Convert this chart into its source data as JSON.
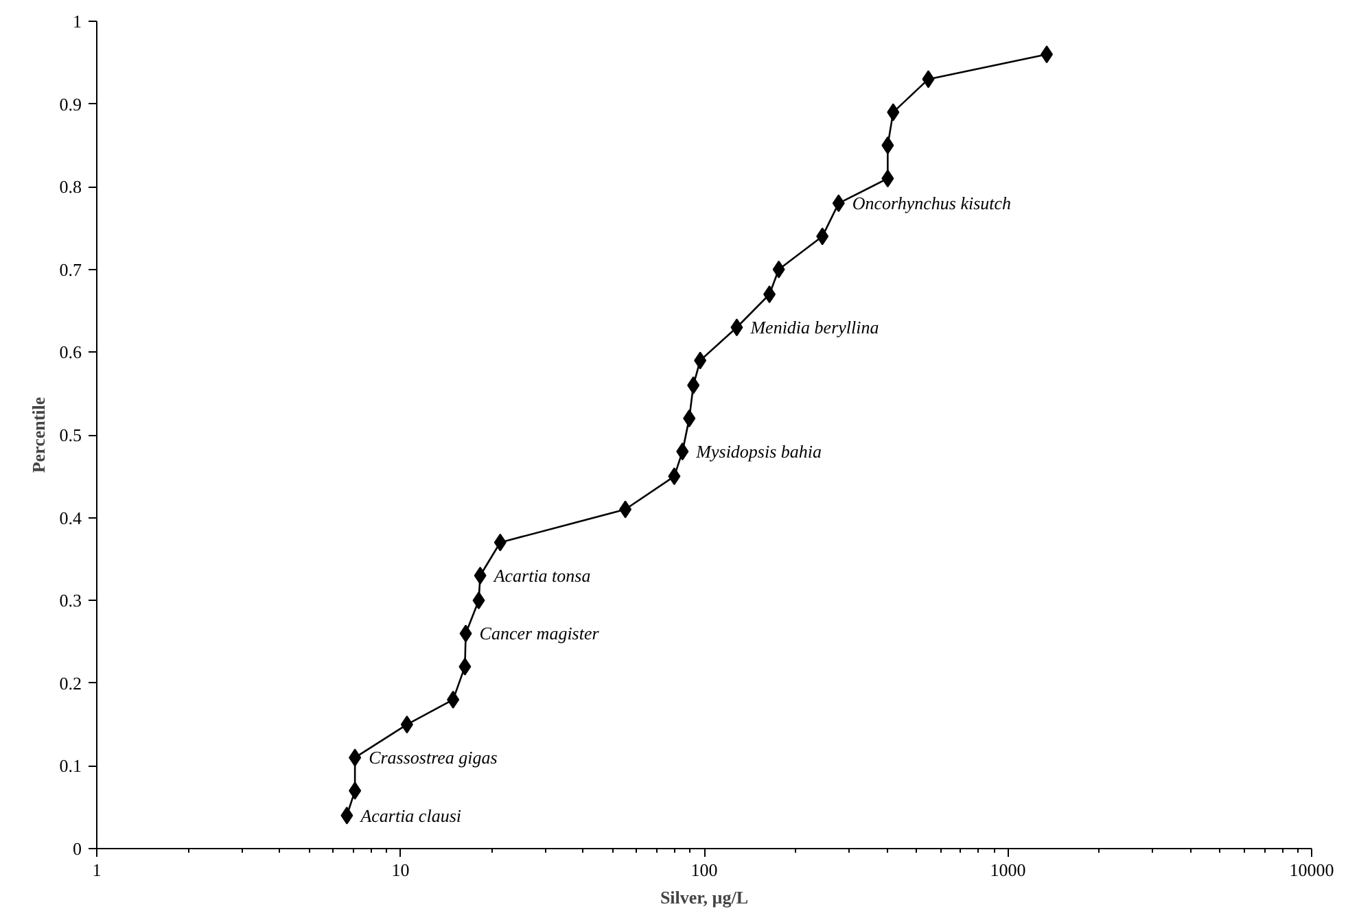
{
  "chart_data": {
    "type": "line",
    "xlabel": "Silver, µg/L",
    "ylabel": "Percentile",
    "x": [
      6.66,
      7.08,
      7.08,
      10.5,
      14.9,
      16.3,
      16.4,
      18.1,
      18.3,
      21.3,
      55,
      79.7,
      84.8,
      89.3,
      92.1,
      97,
      128,
      164,
      176,
      245,
      277,
      402,
      402,
      419,
      547,
      1342
    ],
    "series": [
      {
        "color": "#000000",
        "values": [
          0.04,
          0.07,
          0.11,
          0.15,
          0.18,
          0.22,
          0.26,
          0.3,
          0.33,
          0.37,
          0.41,
          0.45,
          0.48,
          0.52,
          0.56,
          0.59,
          0.63,
          0.67,
          0.7,
          0.74,
          0.78,
          0.81,
          0.85,
          0.89,
          0.93,
          0.96
        ]
      }
    ],
    "log": "x",
    "xlim": [
      1,
      10000
    ],
    "xticks": [
      1,
      10,
      100,
      1000,
      10000
    ],
    "ylim": [
      0,
      1
    ],
    "yticks": [
      0,
      0.1,
      0.2,
      0.3,
      0.4,
      0.5,
      0.6,
      0.7,
      0.8,
      0.9,
      1
    ],
    "marker": "diamond",
    "line_style": "solid",
    "grid": false,
    "annotations": [
      {
        "text": "Acartia clausi",
        "x": 6.66,
        "y": 0.04
      },
      {
        "text": "Crassostrea gigas",
        "x": 7.08,
        "y": 0.11
      },
      {
        "text": "Cancer magister",
        "x": 16.4,
        "y": 0.26
      },
      {
        "text": "Acartia tonsa",
        "x": 18.3,
        "y": 0.33
      },
      {
        "text": "Mysidopsis bahia",
        "x": 84.8,
        "y": 0.48
      },
      {
        "text": "Menidia beryllina",
        "x": 128,
        "y": 0.63
      },
      {
        "text": "Oncorhynchus kisutch",
        "x": 277,
        "y": 0.78
      }
    ]
  }
}
